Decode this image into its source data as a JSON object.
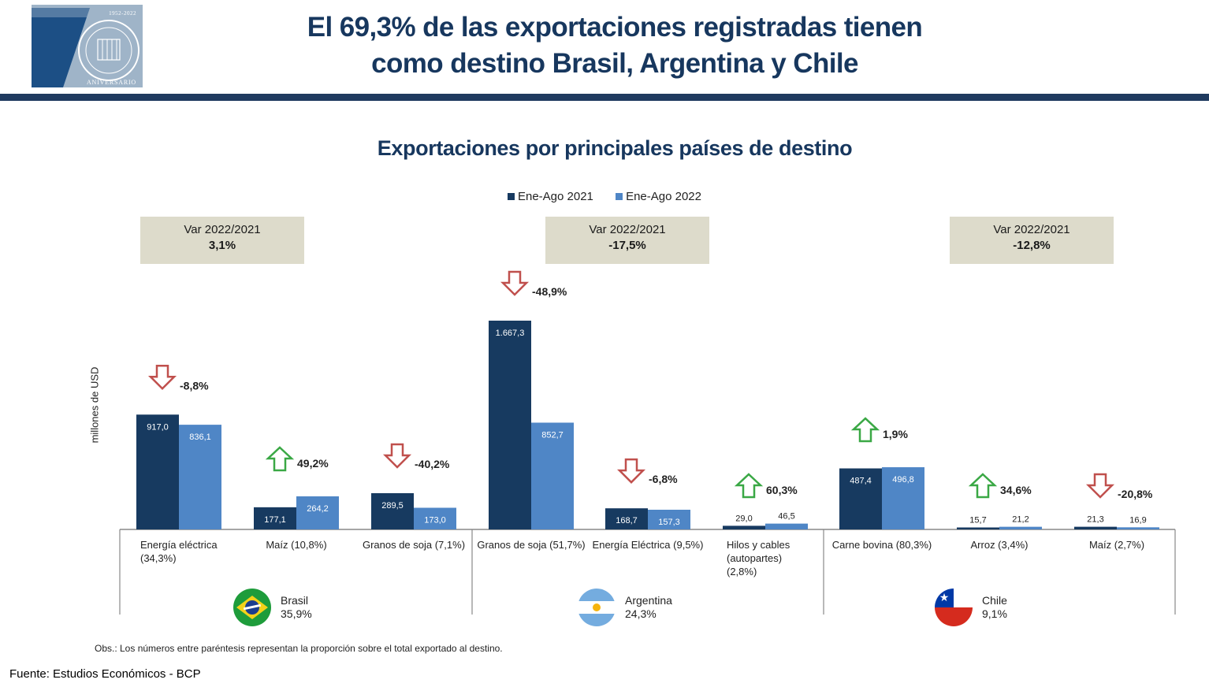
{
  "logo": {
    "years": "1952-2022",
    "anniversary": "ANIVERSARIO",
    "institution": "BANCO CENTRAL DEL PARAGUAY",
    "colors": {
      "background": "#9fb4c8",
      "seven": "#1c4f85"
    }
  },
  "header": {
    "title_line1": "El 69,3% de las exportaciones registradas tienen",
    "title_line2": "como destino Brasil, Argentina y Chile"
  },
  "legend": [
    {
      "label": "Ene-Ago 2021",
      "color": "#173a60"
    },
    {
      "label": "Ene-Ago 2022",
      "color": "#4f86c6"
    }
  ],
  "variation_boxes": [
    {
      "label": "Var 2022/2021",
      "value": "3,1%"
    },
    {
      "label": "Var 2022/2021",
      "value": "-17,5%"
    },
    {
      "label": "Var 2022/2021",
      "value": "-12,8%"
    }
  ],
  "countries": [
    {
      "name": "Brasil",
      "share": "35,9%",
      "flag": "brazil-flag-icon"
    },
    {
      "name": "Argentina",
      "share": "24,3%",
      "flag": "argentina-flag-icon"
    },
    {
      "name": "Chile",
      "share": "9,1%",
      "flag": "chile-flag-icon"
    }
  ],
  "chart_data": {
    "type": "bar",
    "title": "Exportaciones por principales países de destino",
    "ylabel": "millones de USD",
    "xlabel": "",
    "ylim": [
      0,
      1667.3
    ],
    "grid": false,
    "legend_position": "top-center",
    "arrow_colors": {
      "up": "#3aa845",
      "down": "#c0504d"
    },
    "series": [
      {
        "name": "Ene-Ago 2021",
        "color": "#173a60",
        "values": [
          917.0,
          177.1,
          289.5,
          1667.3,
          168.7,
          29.0,
          487.4,
          15.7,
          21.3
        ],
        "labels": [
          "917,0",
          "177,1",
          "289,5",
          "1.667,3",
          "168,7",
          "29,0",
          "487,4",
          "15,7",
          "21,3"
        ]
      },
      {
        "name": "Ene-Ago 2022",
        "color": "#4f86c6",
        "values": [
          836.1,
          264.2,
          173.0,
          852.7,
          157.3,
          46.5,
          496.8,
          21.2,
          16.9
        ],
        "labels": [
          "836,1",
          "264,2",
          "173,0",
          "852,7",
          "157,3",
          "46,5",
          "496,8",
          "21,2",
          "16,9"
        ]
      }
    ],
    "categories": [
      {
        "country": "Brasil",
        "lines": [
          "Energía eléctrica",
          "(34,3%)"
        ],
        "align": "left",
        "change": "-8,8%",
        "direction": "down"
      },
      {
        "country": "Brasil",
        "lines": [
          "Maíz  (10,8%)"
        ],
        "align": "center",
        "change": "49,2%",
        "direction": "up"
      },
      {
        "country": "Brasil",
        "lines": [
          "Granos de soja  (7,1%)"
        ],
        "align": "center",
        "change": "-40,2%",
        "direction": "down"
      },
      {
        "country": "Argentina",
        "lines": [
          "Granos de soja (51,7%)"
        ],
        "align": "center",
        "change": "-48,9%",
        "direction": "down"
      },
      {
        "country": "Argentina",
        "lines": [
          "Energía Eléctrica (9,5%)"
        ],
        "align": "center",
        "change": "-6,8%",
        "direction": "down"
      },
      {
        "country": "Argentina",
        "lines": [
          "Hilos y cables",
          "(autopartes)",
          "(2,8%)"
        ],
        "align": "left",
        "change": "60,3%",
        "direction": "up"
      },
      {
        "country": "Chile",
        "lines": [
          "Carne bovina (80,3%)"
        ],
        "align": "center",
        "change": "1,9%",
        "direction": "up"
      },
      {
        "country": "Chile",
        "lines": [
          "Arroz (3,4%)"
        ],
        "align": "center",
        "change": "34,6%",
        "direction": "up"
      },
      {
        "country": "Chile",
        "lines": [
          "Maíz (2,7%)"
        ],
        "align": "center",
        "change": "-20,8%",
        "direction": "down"
      }
    ]
  },
  "note": "Obs.: Los números entre paréntesis representan la proporción sobre el total exportado al destino.",
  "source": "Fuente: Estudios Económicos - BCP"
}
